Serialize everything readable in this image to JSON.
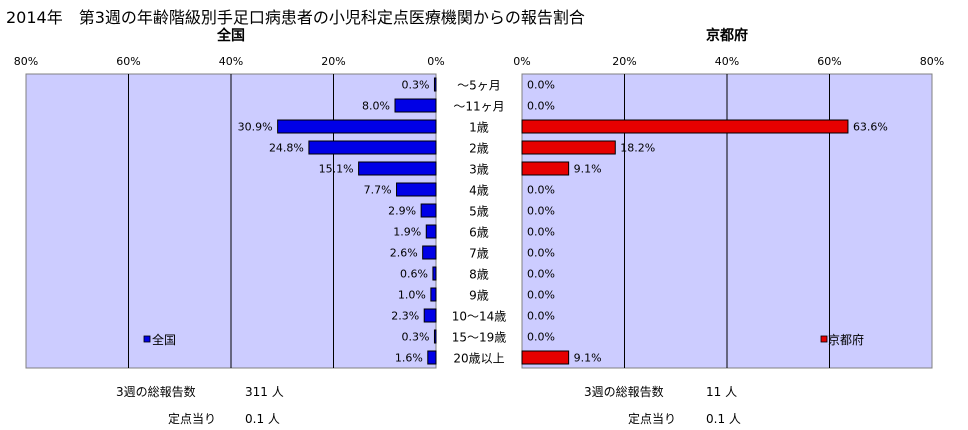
{
  "title": "2014年　第3週の年齢階級別手足口病患者の小児科定点医療機関からの報告割合",
  "categories": [
    "～5ヶ月",
    "～11ヶ月",
    "1歳",
    "2歳",
    "3歳",
    "4歳",
    "5歳",
    "6歳",
    "7歳",
    "8歳",
    "9歳",
    "10～14歳",
    "15～19歳",
    "20歳以上"
  ],
  "colors": {
    "national_bar": "#0000e6",
    "kyoto_bar": "#e60000",
    "plot_bg": "#ccccff",
    "grid": "#000000"
  },
  "chart_data": [
    {
      "type": "bar",
      "title": "全国",
      "orientation": "horizontal",
      "direction": "leftward",
      "categories": [
        "～5ヶ月",
        "～11ヶ月",
        "1歳",
        "2歳",
        "3歳",
        "4歳",
        "5歳",
        "6歳",
        "7歳",
        "8歳",
        "9歳",
        "10～14歳",
        "15～19歳",
        "20歳以上"
      ],
      "series": [
        {
          "name": "全国",
          "values": [
            0.3,
            8.0,
            30.9,
            24.8,
            15.1,
            7.7,
            2.9,
            1.9,
            2.6,
            0.6,
            1.0,
            2.3,
            0.3,
            1.6
          ]
        }
      ],
      "data_labels": [
        "0.3%",
        "8.0%",
        "30.9%",
        "24.8%",
        "15.1%",
        "7.7%",
        "2.9%",
        "1.9%",
        "2.6%",
        "0.6%",
        "1.0%",
        "2.3%",
        "0.3%",
        "1.6%"
      ],
      "xlim": [
        0,
        80
      ],
      "ticks": [
        "80%",
        "60%",
        "40%",
        "20%",
        "0%"
      ],
      "grid": true,
      "legend": "bottom-left"
    },
    {
      "type": "bar",
      "title": "京都府",
      "orientation": "horizontal",
      "direction": "rightward",
      "categories": [
        "～5ヶ月",
        "～11ヶ月",
        "1歳",
        "2歳",
        "3歳",
        "4歳",
        "5歳",
        "6歳",
        "7歳",
        "8歳",
        "9歳",
        "10～14歳",
        "15～19歳",
        "20歳以上"
      ],
      "series": [
        {
          "name": "京都府",
          "values": [
            0.0,
            0.0,
            63.6,
            18.2,
            9.1,
            0.0,
            0.0,
            0.0,
            0.0,
            0.0,
            0.0,
            0.0,
            0.0,
            9.1
          ]
        }
      ],
      "data_labels": [
        "0.0%",
        "0.0%",
        "63.6%",
        "18.2%",
        "9.1%",
        "0.0%",
        "0.0%",
        "0.0%",
        "0.0%",
        "0.0%",
        "0.0%",
        "0.0%",
        "0.0%",
        "9.1%"
      ],
      "xlim": [
        0,
        80
      ],
      "ticks": [
        "0%",
        "20%",
        "40%",
        "60%",
        "80%"
      ],
      "grid": true,
      "legend": "bottom-right"
    }
  ],
  "footer": {
    "national_total_label": "3週の総報告数",
    "national_total_value": "311 人",
    "national_per_label": "定点当り",
    "national_per_value": "0.1 人",
    "kyoto_total_label": "3週の総報告数",
    "kyoto_total_value": "11 人",
    "kyoto_per_label": "定点当り",
    "kyoto_per_value": "0.1 人"
  }
}
